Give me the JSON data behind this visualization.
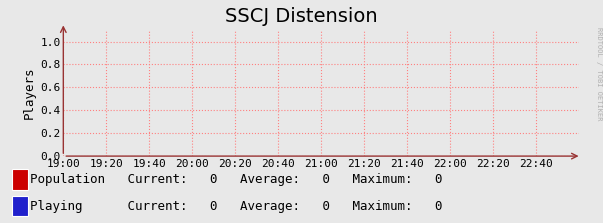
{
  "title": "SSCJ Distension",
  "ylabel": "Players",
  "background_color": "#e8e8e8",
  "plot_bg_color": "#e8e8e8",
  "grid_color": "#ff8080",
  "grid_style": ":",
  "ylim": [
    0.0,
    1.1
  ],
  "yticks": [
    0.0,
    0.2,
    0.4,
    0.6,
    0.8,
    1.0
  ],
  "xtick_positions": [
    0,
    12,
    24,
    36,
    48,
    60,
    72,
    84,
    96,
    108,
    120,
    132
  ],
  "xtick_labels": [
    "19:00",
    "19:20",
    "19:40",
    "20:00",
    "20:20",
    "20:40",
    "21:00",
    "21:20",
    "21:40",
    "22:00",
    "22:20",
    "22:40"
  ],
  "xlim": [
    0,
    144
  ],
  "legend_entries": [
    {
      "label": "Population",
      "color": "#cc0000"
    },
    {
      "label": "Playing",
      "color": "#2020cc"
    }
  ],
  "legend_stats": [
    [
      "Current:",
      "0",
      "Average:",
      "0",
      "Maximum:",
      "0"
    ],
    [
      "Current:",
      "0",
      "Average:",
      "0",
      "Maximum:",
      "0"
    ]
  ],
  "watermark": "RRDTOOL / TOBI OETIKER",
  "title_fontsize": 14,
  "axis_fontsize": 8,
  "legend_fontsize": 9
}
